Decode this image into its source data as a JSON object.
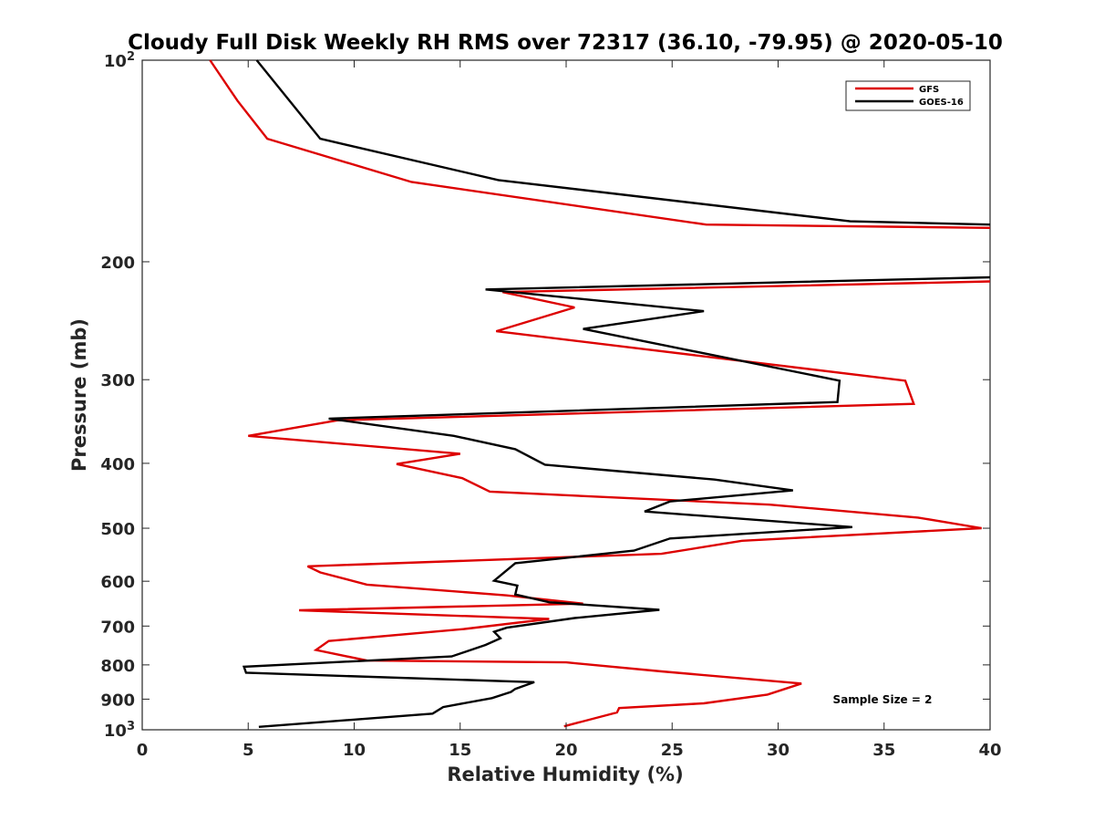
{
  "chart_data": {
    "type": "line",
    "title": "Cloudy Full Disk Weekly RH RMS over 72317 (36.10, -79.95) @ 2020-05-10",
    "xlabel": "Relative Humidity (%)",
    "ylabel": "Pressure (mb)",
    "xlim": [
      0,
      40
    ],
    "ylim": [
      100,
      1000
    ],
    "yscale": "log",
    "y_reversed": true,
    "x_ticks": [
      "0",
      "5",
      "10",
      "15",
      "20",
      "25",
      "30",
      "35",
      "40"
    ],
    "y_ticks": [
      {
        "value": 100,
        "base": "10",
        "exp": "2"
      },
      {
        "value": 200,
        "base": "200",
        "exp": ""
      },
      {
        "value": 300,
        "base": "300",
        "exp": ""
      },
      {
        "value": 400,
        "base": "400",
        "exp": ""
      },
      {
        "value": 500,
        "base": "500",
        "exp": ""
      },
      {
        "value": 600,
        "base": "600",
        "exp": ""
      },
      {
        "value": 700,
        "base": "700",
        "exp": ""
      },
      {
        "value": 800,
        "base": "800",
        "exp": ""
      },
      {
        "value": 900,
        "base": "900",
        "exp": ""
      },
      {
        "value": 1000,
        "base": "10",
        "exp": "3"
      }
    ],
    "grid": false,
    "legend_position": "top-right",
    "series": [
      {
        "name": "GFS",
        "color": "#dd0000",
        "points": [
          [
            3.2,
            100
          ],
          [
            4.5,
            115
          ],
          [
            5.9,
            131
          ],
          [
            12.7,
            152
          ],
          [
            26.6,
            176
          ],
          [
            40.0,
            178
          ],
          null,
          [
            40.0,
            214
          ],
          [
            17.0,
            222
          ],
          [
            20.4,
            234
          ],
          [
            16.7,
            254
          ],
          [
            36.0,
            301
          ],
          [
            36.4,
            326
          ],
          [
            9.2,
            345
          ],
          [
            5.0,
            364
          ],
          [
            15.0,
            387
          ],
          [
            12.0,
            401
          ],
          [
            15.1,
            421
          ],
          [
            16.4,
            441
          ],
          [
            29.6,
            461
          ],
          [
            36.6,
            482
          ],
          [
            39.6,
            500
          ],
          [
            28.3,
            522
          ],
          [
            24.5,
            546
          ],
          [
            7.8,
            570
          ],
          [
            8.4,
            582
          ],
          [
            10.6,
            607
          ],
          [
            17.2,
            630
          ],
          [
            20.8,
            648
          ],
          [
            7.4,
            663
          ],
          [
            19.2,
            683
          ],
          [
            15.2,
            707
          ],
          [
            8.8,
            737
          ],
          [
            8.2,
            760
          ],
          [
            10.6,
            788
          ],
          [
            20.0,
            793
          ],
          [
            24.5,
            818
          ],
          [
            31.1,
            853
          ],
          [
            29.5,
            886
          ],
          [
            26.5,
            913
          ],
          [
            22.5,
            928
          ],
          [
            22.4,
            942
          ],
          [
            19.9,
            988
          ]
        ]
      },
      {
        "name": "GOES-16",
        "color": "#000000",
        "points": [
          [
            5.4,
            100
          ],
          [
            8.4,
            131
          ],
          [
            16.8,
            151
          ],
          [
            33.4,
            174
          ],
          [
            40.0,
            176
          ],
          null,
          [
            40.0,
            211
          ],
          [
            16.2,
            220
          ],
          [
            26.5,
            237
          ],
          [
            20.8,
            252
          ],
          [
            32.9,
            301
          ],
          [
            32.8,
            324
          ],
          [
            8.8,
            343
          ],
          [
            14.7,
            364
          ],
          [
            17.6,
            381
          ],
          [
            19.0,
            402
          ],
          [
            27.0,
            423
          ],
          [
            30.7,
            439
          ],
          [
            24.9,
            456
          ],
          [
            23.7,
            472
          ],
          [
            33.5,
            498
          ],
          [
            24.9,
            518
          ],
          [
            23.2,
            540
          ],
          [
            17.6,
            564
          ],
          [
            16.6,
            599
          ],
          [
            17.7,
            609
          ],
          [
            17.6,
            628
          ],
          [
            19.2,
            645
          ],
          [
            24.4,
            662
          ],
          [
            20.4,
            681
          ],
          [
            17.2,
            704
          ],
          [
            16.6,
            714
          ],
          [
            16.9,
            730
          ],
          [
            16.2,
            747
          ],
          [
            14.6,
            777
          ],
          [
            4.8,
            805
          ],
          [
            4.9,
            822
          ],
          [
            18.5,
            849
          ],
          [
            17.6,
            869
          ],
          [
            17.4,
            878
          ],
          [
            16.5,
            897
          ],
          [
            14.2,
            925
          ],
          [
            13.7,
            946
          ],
          [
            5.5,
            990
          ]
        ]
      }
    ],
    "annotation": "Sample Size = 2"
  }
}
